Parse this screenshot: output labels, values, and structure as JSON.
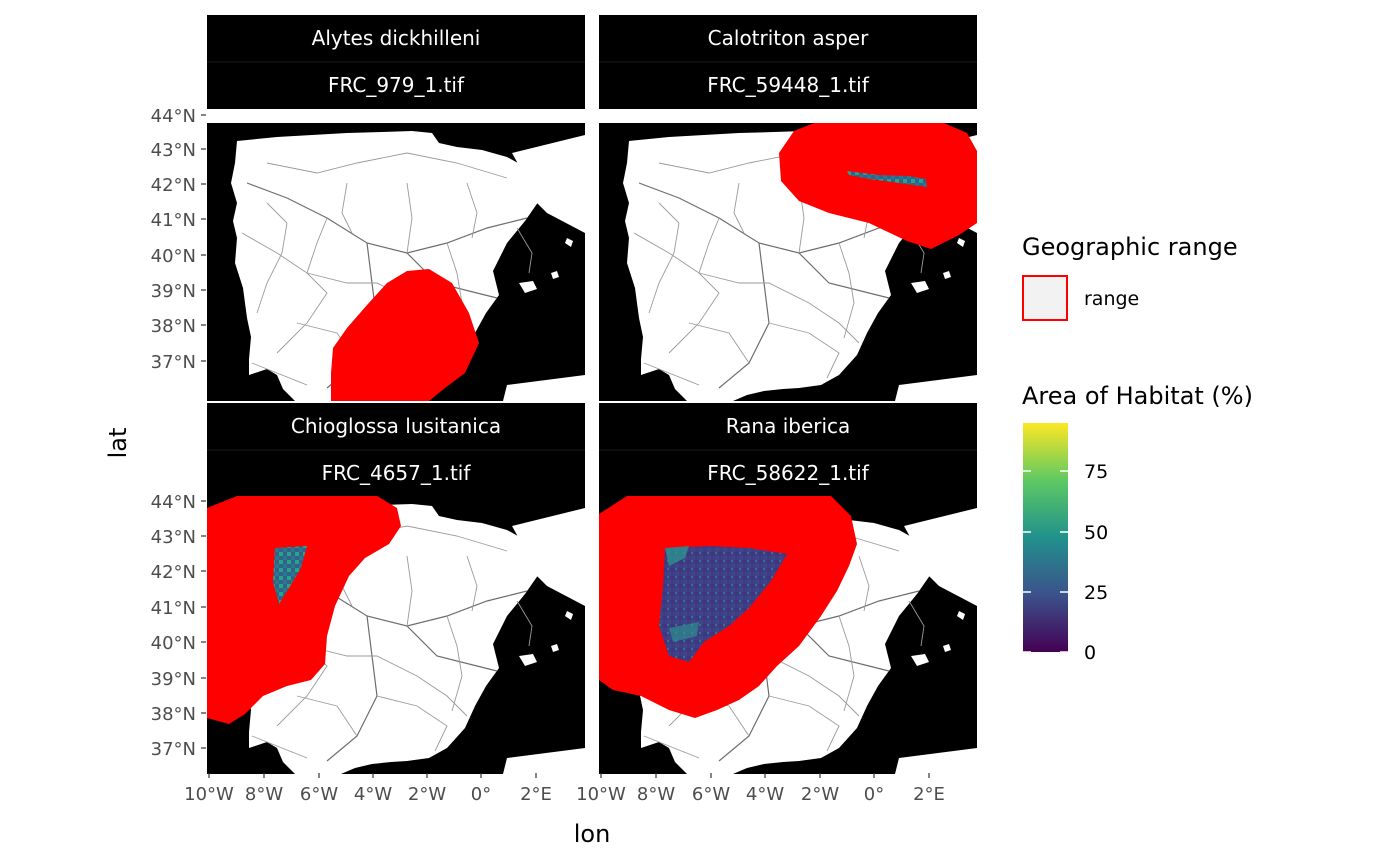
{
  "axes": {
    "xlabel": "lon",
    "ylabel": "lat",
    "x_ticks": [
      "10°W",
      "8°W",
      "6°W",
      "4°W",
      "2°W",
      "0°",
      "2°E"
    ],
    "y_ticks": [
      "44°N",
      "43°N",
      "42°N",
      "41°N",
      "40°N",
      "39°N",
      "38°N",
      "37°N"
    ]
  },
  "panels": [
    {
      "species": "Alytes dickhilleni",
      "file": "FRC_979_1.tif"
    },
    {
      "species": "Calotriton asper",
      "file": "FRC_59448_1.tif"
    },
    {
      "species": "Chioglossa lusitanica",
      "file": "FRC_4657_1.tif"
    },
    {
      "species": "Rana iberica",
      "file": "FRC_58622_1.tif"
    }
  ],
  "legend": {
    "range_title": "Geographic range",
    "range_label": "range",
    "range_color": "#ff0000",
    "aoh_title": "Area of Habitat (%)",
    "aoh_ticks": [
      "75",
      "50",
      "25",
      "0"
    ],
    "aoh_colors": [
      "#fde725",
      "#5ec962",
      "#21918c",
      "#3b528b",
      "#440154"
    ]
  }
}
